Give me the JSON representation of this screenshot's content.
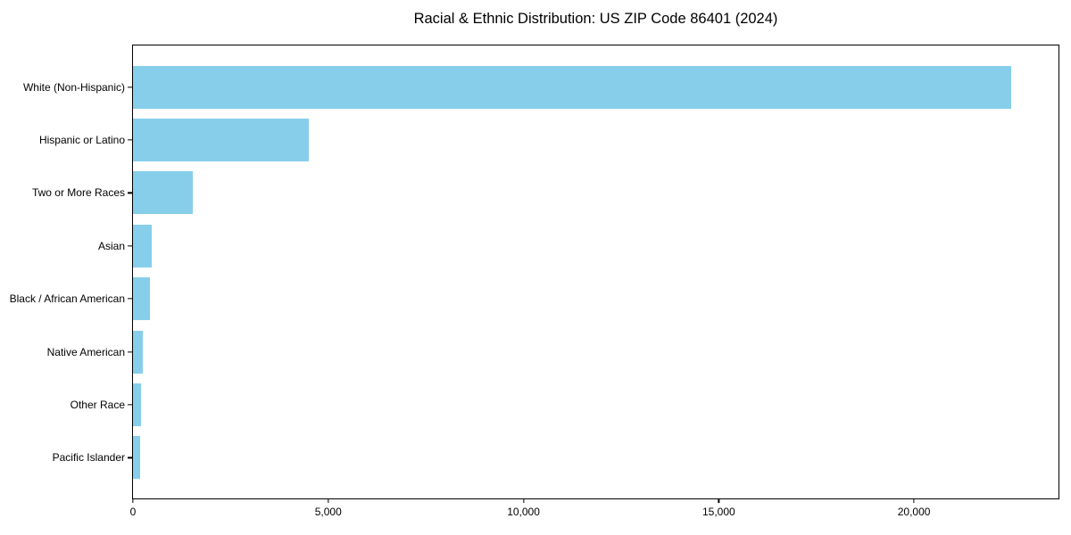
{
  "title": "Racial & Ethnic Distribution: US ZIP Code 86401 (2024)",
  "chart_data": {
    "type": "bar",
    "orientation": "horizontal",
    "title": "Racial & Ethnic Distribution: US ZIP Code 86401 (2024)",
    "categories": [
      "White (Non-Hispanic)",
      "Hispanic or Latino",
      "Two or More Races",
      "Asian",
      "Black / African American",
      "Native American",
      "Other Race",
      "Pacific Islander"
    ],
    "values": [
      22500,
      4510,
      1530,
      470,
      440,
      245,
      200,
      185
    ],
    "xlabel": "",
    "ylabel": "",
    "xlim": [
      0,
      23700
    ],
    "x_ticks": [
      0,
      5000,
      10000,
      15000,
      20000
    ],
    "x_tick_labels": [
      "0",
      "5,000",
      "10,000",
      "15,000",
      "20,000"
    ],
    "bar_color": "#87CEEB",
    "text_color": "#000000",
    "background": "#FFFFFF",
    "grid": false,
    "legend": null
  }
}
